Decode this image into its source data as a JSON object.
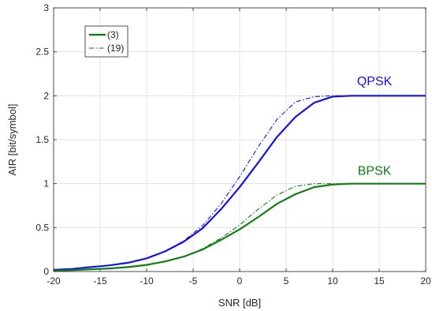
{
  "chart_data": {
    "type": "line",
    "xlabel": "SNR [dB]",
    "ylabel": "AIR [bit/symbol]",
    "xlim": [
      -20,
      20
    ],
    "ylim": [
      0,
      3
    ],
    "xticks": [
      -20,
      -15,
      -10,
      -5,
      0,
      5,
      10,
      15,
      20
    ],
    "yticks": [
      0,
      0.5,
      1,
      1.5,
      2,
      2.5,
      3
    ],
    "xtick_labels": [
      "-20",
      "-15",
      "-10",
      "-5",
      "0",
      "5",
      "10",
      "15",
      "20"
    ],
    "ytick_labels": [
      "0",
      "0.5",
      "1",
      "1.5",
      "2",
      "2.5",
      "3"
    ],
    "grid": true,
    "legend_position": "top-left",
    "legend": [
      {
        "label": "(3)",
        "style": "solid",
        "color": "#007f00"
      },
      {
        "label": "(19)",
        "style": "dash-dot",
        "color": "#007f00"
      }
    ],
    "annotations": [
      {
        "text": "QPSK",
        "x": 14.5,
        "y": 2.12,
        "color": "#1414e0"
      },
      {
        "text": "BPSK",
        "x": 14.5,
        "y": 1.1,
        "color": "#107e10"
      }
    ],
    "x": [
      -20,
      -18,
      -16,
      -14,
      -12,
      -10,
      -8,
      -6,
      -4,
      -2,
      0,
      2,
      4,
      6,
      8,
      10,
      12,
      14,
      16,
      18,
      20
    ],
    "series": [
      {
        "name": "",
        "group": "QPSK",
        "style": "solid",
        "color": "#1414e0",
        "values": [
          0.02,
          0.03,
          0.05,
          0.07,
          0.1,
          0.15,
          0.23,
          0.34,
          0.49,
          0.71,
          0.96,
          1.24,
          1.53,
          1.76,
          1.92,
          1.99,
          2.0,
          2.0,
          2.0,
          2.0,
          2.0
        ]
      },
      {
        "name": "",
        "group": "QPSK",
        "style": "dash-dot",
        "color": "#1414e0",
        "values": [
          0.02,
          0.03,
          0.05,
          0.07,
          0.1,
          0.15,
          0.23,
          0.35,
          0.52,
          0.77,
          1.08,
          1.42,
          1.73,
          1.93,
          1.99,
          2.0,
          2.0,
          2.0,
          2.0,
          2.0,
          2.0
        ]
      },
      {
        "name": "",
        "group": "BPSK",
        "style": "solid",
        "color": "#107e10",
        "values": [
          0.01,
          0.015,
          0.025,
          0.035,
          0.05,
          0.075,
          0.115,
          0.17,
          0.25,
          0.36,
          0.48,
          0.62,
          0.77,
          0.88,
          0.96,
          0.99,
          1.0,
          1.0,
          1.0,
          1.0,
          1.0
        ]
      },
      {
        "name": "",
        "group": "BPSK",
        "style": "dash-dot",
        "color": "#107e10",
        "values": [
          0.01,
          0.015,
          0.025,
          0.035,
          0.05,
          0.075,
          0.115,
          0.17,
          0.26,
          0.38,
          0.53,
          0.71,
          0.87,
          0.97,
          1.0,
          1.0,
          1.0,
          1.0,
          1.0,
          1.0,
          1.0
        ]
      }
    ]
  }
}
